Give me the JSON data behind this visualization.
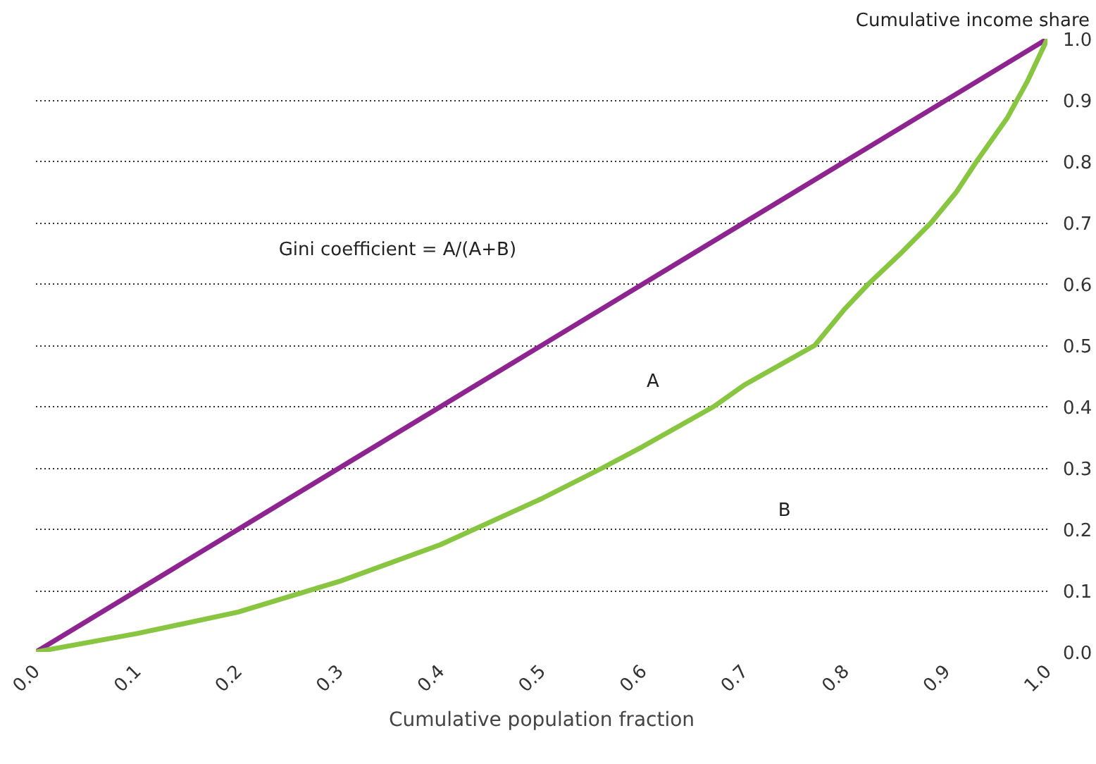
{
  "chart_data": {
    "type": "line",
    "xlabel": "Cumulative population fraction",
    "ylabel": "Cumulative income share",
    "xlim": [
      0,
      1
    ],
    "ylim": [
      0,
      1
    ],
    "xticks": [
      {
        "value": 0,
        "label": "0.0"
      },
      0.1,
      0.2,
      0.3,
      0.4,
      0.5,
      0.6,
      0.7,
      0.8,
      0.9,
      {
        "value": 1,
        "label": "1.0"
      }
    ],
    "yticks": [
      {
        "value": 0,
        "label": "0.0"
      },
      0.1,
      0.2,
      0.3,
      0.4,
      0.5,
      0.6,
      0.7,
      0.8,
      0.9,
      {
        "value": 1,
        "label": "1.0"
      }
    ],
    "grid": "y",
    "line_style": "solid",
    "marker": "none",
    "series": [
      {
        "color": "#8e2490",
        "x": [
          0,
          1
        ],
        "values": [
          0,
          1
        ]
      },
      {
        "color": "#88c540",
        "x": [
          0,
          0.1,
          0.2,
          0.3,
          0.4,
          0.5,
          0.56,
          0.6,
          0.67,
          0.7,
          0.77,
          0.8,
          0.823,
          0.855,
          0.885,
          0.91,
          0.93,
          0.96,
          0.98,
          1
        ],
        "values": [
          0,
          0.03,
          0.065,
          0.115,
          0.175,
          0.25,
          0.3,
          0.335,
          0.4,
          0.435,
          0.5,
          0.56,
          0.6,
          0.65,
          0.7,
          0.75,
          0.8,
          0.87,
          0.93,
          1
        ]
      }
    ],
    "annotations": [
      "Gini coefficient = A/(A+B)",
      "A",
      "B"
    ]
  }
}
